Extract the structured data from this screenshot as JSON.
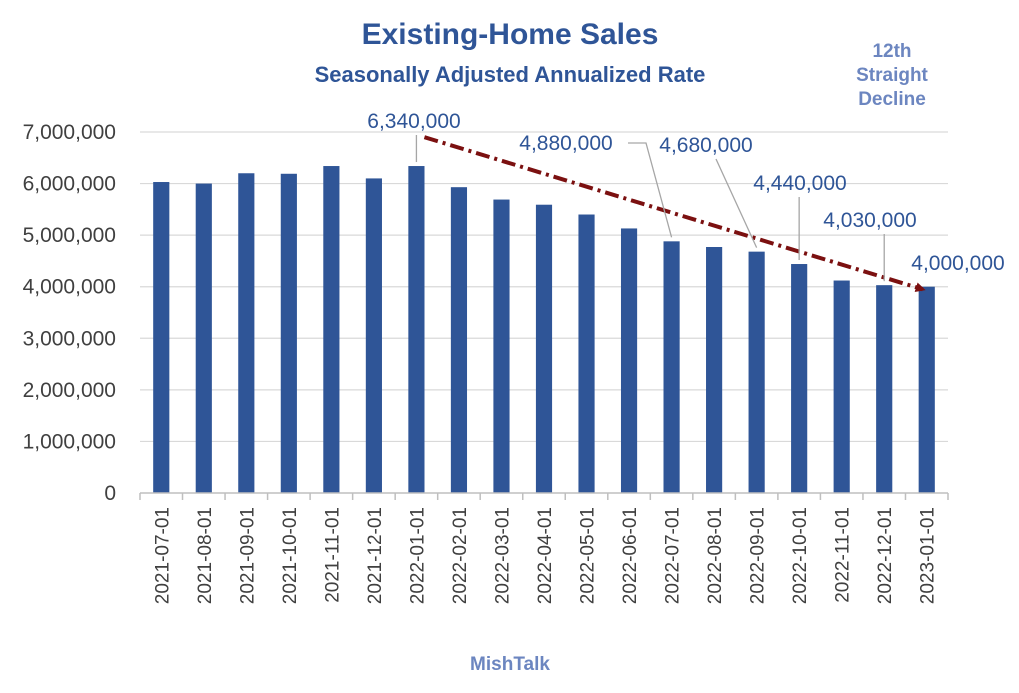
{
  "chart_data": {
    "type": "bar",
    "title": "Existing-Home Sales",
    "subtitle": "Seasonally Adjusted Annualized Rate",
    "xlabel": "",
    "ylabel": "",
    "ylim": [
      0,
      7000000
    ],
    "y_ticks": [
      "0",
      "1,000,000",
      "2,000,000",
      "3,000,000",
      "4,000,000",
      "5,000,000",
      "6,000,000",
      "7,000,000"
    ],
    "grid": true,
    "categories": [
      "2021-07-01",
      "2021-08-01",
      "2021-09-01",
      "2021-10-01",
      "2021-11-01",
      "2021-12-01",
      "2022-01-01",
      "2022-02-01",
      "2022-03-01",
      "2022-04-01",
      "2022-05-01",
      "2022-06-01",
      "2022-07-01",
      "2022-08-01",
      "2022-09-01",
      "2022-10-01",
      "2022-11-01",
      "2022-12-01",
      "2023-01-01"
    ],
    "values": [
      6030000,
      6000000,
      6200000,
      6190000,
      6340000,
      6100000,
      6340000,
      5930000,
      5690000,
      5590000,
      5400000,
      5130000,
      4880000,
      4770000,
      4680000,
      4440000,
      4120000,
      4030000,
      4000000
    ],
    "bar_color": "#2f5597",
    "annotations": [
      {
        "text": "6,340,000",
        "category": "2022-01-01"
      },
      {
        "text": "4,880,000",
        "category": "2022-07-01"
      },
      {
        "text": "4,680,000",
        "category": "2022-09-01"
      },
      {
        "text": "4,440,000",
        "category": "2022-10-01"
      },
      {
        "text": "4,030,000",
        "category": "2022-12-01"
      },
      {
        "text": "4,000,000",
        "category": "2023-01-01"
      }
    ],
    "note": [
      "12th",
      "Straight",
      "Decline"
    ],
    "trend_arrow": {
      "from_category": "2022-01-01",
      "from_value": 6900000,
      "to_category": "2023-01-01",
      "to_value": 3950000,
      "color": "#7b1010"
    },
    "footer": "MishTalk"
  }
}
